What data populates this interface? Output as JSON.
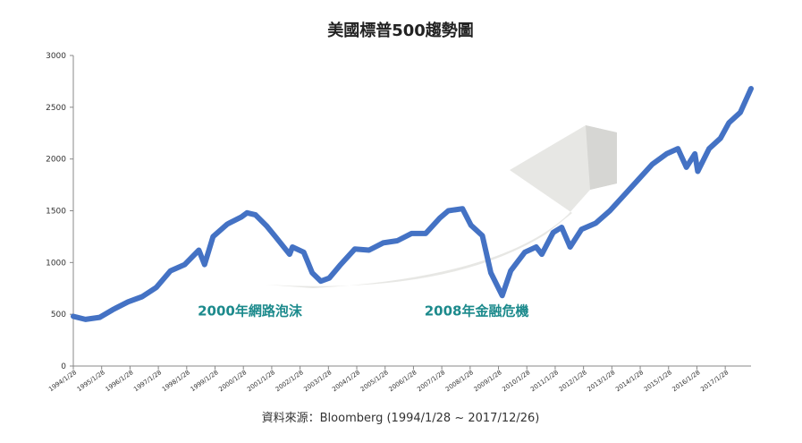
{
  "chart_data": {
    "type": "line",
    "title": "美國標普500趨勢圖",
    "xlabel": "",
    "ylabel": "",
    "ylim": [
      0,
      3000
    ],
    "yticks": [
      0,
      500,
      1000,
      1500,
      2000,
      2500,
      3000
    ],
    "xlim": [
      1994.07,
      2017.98
    ],
    "xticks": [
      {
        "x": 1994.07,
        "label": "1994/1/28"
      },
      {
        "x": 1995.07,
        "label": "1995/1/28"
      },
      {
        "x": 1996.07,
        "label": "1996/1/28"
      },
      {
        "x": 1997.07,
        "label": "1997/1/28"
      },
      {
        "x": 1998.07,
        "label": "1998/1/28"
      },
      {
        "x": 1999.07,
        "label": "1999/1/28"
      },
      {
        "x": 2000.07,
        "label": "2000/1/28"
      },
      {
        "x": 2001.07,
        "label": "2001/1/28"
      },
      {
        "x": 2002.07,
        "label": "2002/1/28"
      },
      {
        "x": 2003.07,
        "label": "2003/1/28"
      },
      {
        "x": 2004.07,
        "label": "2004/1/28"
      },
      {
        "x": 2005.07,
        "label": "2005/1/28"
      },
      {
        "x": 2006.07,
        "label": "2006/1/28"
      },
      {
        "x": 2007.07,
        "label": "2007/1/28"
      },
      {
        "x": 2008.07,
        "label": "2008/1/28"
      },
      {
        "x": 2009.07,
        "label": "2009/1/28"
      },
      {
        "x": 2010.07,
        "label": "2010/1/28"
      },
      {
        "x": 2011.07,
        "label": "2011/1/28"
      },
      {
        "x": 2012.07,
        "label": "2012/1/28"
      },
      {
        "x": 2013.07,
        "label": "2013/1/28"
      },
      {
        "x": 2014.07,
        "label": "2014/1/28"
      },
      {
        "x": 2015.07,
        "label": "2015/1/28"
      },
      {
        "x": 2016.07,
        "label": "2016/1/28"
      },
      {
        "x": 2017.07,
        "label": "2017/1/28"
      }
    ],
    "series": [
      {
        "color": "#4472c4",
        "points": [
          [
            1994.07,
            480
          ],
          [
            1994.5,
            450
          ],
          [
            1995.0,
            470
          ],
          [
            1995.5,
            550
          ],
          [
            1996.0,
            620
          ],
          [
            1996.5,
            670
          ],
          [
            1997.0,
            760
          ],
          [
            1997.5,
            920
          ],
          [
            1998.0,
            980
          ],
          [
            1998.5,
            1120
          ],
          [
            1998.7,
            980
          ],
          [
            1999.0,
            1250
          ],
          [
            1999.5,
            1370
          ],
          [
            2000.0,
            1440
          ],
          [
            2000.2,
            1480
          ],
          [
            2000.5,
            1460
          ],
          [
            2000.9,
            1350
          ],
          [
            2001.2,
            1250
          ],
          [
            2001.7,
            1080
          ],
          [
            2001.8,
            1150
          ],
          [
            2002.2,
            1100
          ],
          [
            2002.5,
            900
          ],
          [
            2002.8,
            820
          ],
          [
            2003.1,
            850
          ],
          [
            2003.5,
            980
          ],
          [
            2004.0,
            1130
          ],
          [
            2004.5,
            1120
          ],
          [
            2005.0,
            1190
          ],
          [
            2005.5,
            1210
          ],
          [
            2006.0,
            1280
          ],
          [
            2006.5,
            1280
          ],
          [
            2007.0,
            1430
          ],
          [
            2007.3,
            1500
          ],
          [
            2007.8,
            1520
          ],
          [
            2008.1,
            1360
          ],
          [
            2008.5,
            1260
          ],
          [
            2008.8,
            900
          ],
          [
            2009.2,
            680
          ],
          [
            2009.5,
            920
          ],
          [
            2010.0,
            1100
          ],
          [
            2010.4,
            1150
          ],
          [
            2010.6,
            1080
          ],
          [
            2011.0,
            1290
          ],
          [
            2011.3,
            1340
          ],
          [
            2011.6,
            1150
          ],
          [
            2012.0,
            1320
          ],
          [
            2012.5,
            1380
          ],
          [
            2013.0,
            1500
          ],
          [
            2013.5,
            1650
          ],
          [
            2014.0,
            1800
          ],
          [
            2014.5,
            1950
          ],
          [
            2015.0,
            2050
          ],
          [
            2015.4,
            2100
          ],
          [
            2015.7,
            1920
          ],
          [
            2016.0,
            2050
          ],
          [
            2016.1,
            1880
          ],
          [
            2016.5,
            2100
          ],
          [
            2016.9,
            2200
          ],
          [
            2017.2,
            2350
          ],
          [
            2017.6,
            2450
          ],
          [
            2017.98,
            2680
          ]
        ]
      }
    ],
    "annotations": [
      {
        "text": "2000年網路泡沫",
        "x": 2000.3,
        "y": 530
      },
      {
        "text": "2008年金融危機",
        "x": 2008.3,
        "y": 530
      }
    ],
    "grid": false,
    "legend": "none"
  },
  "source_note": "資料來源：Bloomberg (1994/1/28 ~ 2017/12/26)"
}
